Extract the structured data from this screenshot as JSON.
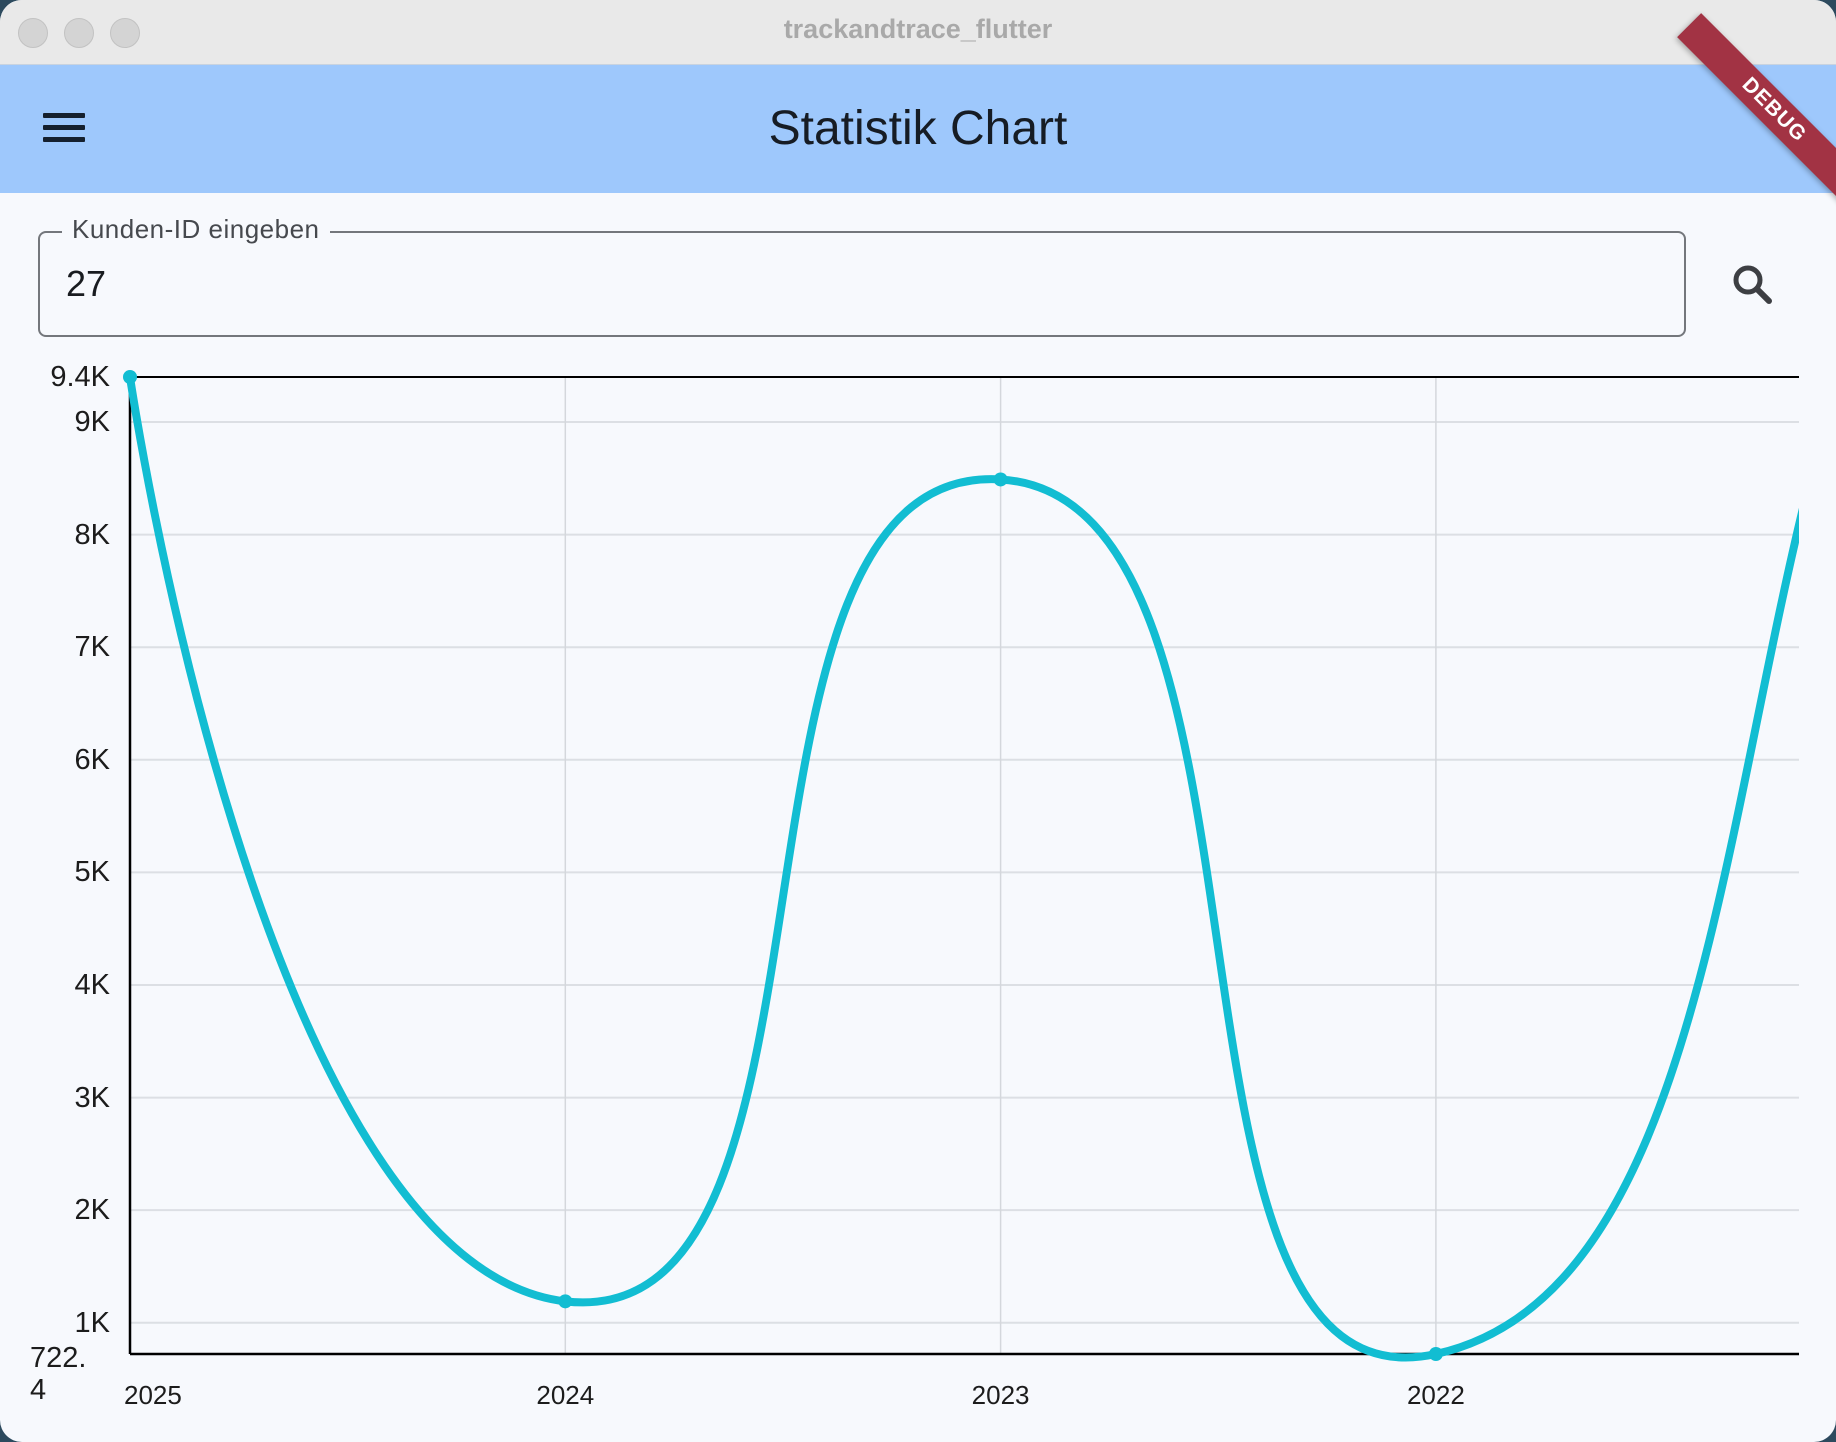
{
  "window": {
    "title": "trackandtrace_flutter"
  },
  "appbar": {
    "title": "Statistik Chart",
    "menu_icon": "hamburger-menu-icon",
    "debug_banner": "DEBUG"
  },
  "search": {
    "label": "Kunden-ID eingeben",
    "value": "27",
    "icon": "search-icon"
  },
  "colors": {
    "appbar": "#9ec8fc",
    "line": "#12bdd2",
    "debug": "#a23344"
  },
  "chart_data": {
    "type": "line",
    "curved": true,
    "categories": [
      "2025",
      "2024",
      "2023",
      "2022"
    ],
    "series": [
      {
        "values": [
          9400,
          1190,
          8490,
          722.4
        ]
      }
    ],
    "ylim": [
      722.4,
      9400
    ],
    "y_ticks": [
      {
        "value": 9400,
        "label": "9.4K"
      },
      {
        "value": 9000,
        "label": "9K"
      },
      {
        "value": 8000,
        "label": "8K"
      },
      {
        "value": 7000,
        "label": "7K"
      },
      {
        "value": 6000,
        "label": "6K"
      },
      {
        "value": 5000,
        "label": "5K"
      },
      {
        "value": 4000,
        "label": "4K"
      },
      {
        "value": 3000,
        "label": "3K"
      },
      {
        "value": 2000,
        "label": "2K"
      },
      {
        "value": 1000,
        "label": "1K"
      },
      {
        "value": 722.4,
        "label": "722.4"
      }
    ],
    "grid": true,
    "title": "",
    "xlabel": "",
    "ylabel": ""
  }
}
